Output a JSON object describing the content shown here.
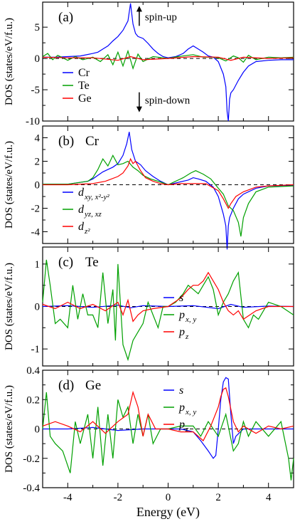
{
  "chart_data": [
    {
      "type": "line",
      "panel_label": "(a)",
      "ylim": [
        -10,
        9
      ],
      "yticks": [
        -10,
        -5,
        0,
        5
      ],
      "legend": [
        {
          "name": "Cr",
          "color": "#0000ff"
        },
        {
          "name": "Te",
          "color": "#00a000"
        },
        {
          "name": "Ge",
          "color": "#ff0000"
        }
      ],
      "annotations": [
        {
          "text": "spin-up",
          "arrow": "up",
          "x": -1.15,
          "y": 6.8
        },
        {
          "text": "spin-down",
          "arrow": "down",
          "x": -1.15,
          "y": -7.0
        }
      ],
      "series": [
        {
          "name": "Cr",
          "color": "#0000ff",
          "x": [
            -5,
            -4.5,
            -4,
            -3.5,
            -3,
            -2.8,
            -2.6,
            -2.4,
            -2.2,
            -2,
            -1.8,
            -1.6,
            -1.5,
            -1.4,
            -1.3,
            -1.2,
            -1,
            -0.8,
            -0.6,
            -0.4,
            -0.2,
            0,
            0.3,
            0.6,
            0.8,
            1,
            1.2,
            1.4,
            1.6,
            1.8,
            2,
            2.2,
            2.3,
            2.35,
            2.4,
            2.45,
            2.5,
            2.6,
            2.8,
            3,
            3.2,
            3.5,
            4,
            4.5,
            5
          ],
          "y": [
            0.2,
            0.2,
            0.3,
            0.4,
            0.8,
            1,
            1.5,
            2,
            2.8,
            3.5,
            4.5,
            6,
            8.8,
            5.5,
            4,
            3.5,
            3.2,
            2.4,
            1.5,
            0.8,
            0.3,
            0.1,
            0.3,
            0.8,
            1.5,
            2.0,
            1.5,
            1.0,
            0.4,
            0.2,
            -0.5,
            -2.5,
            -4.5,
            -8.5,
            -10,
            -6.5,
            -5.5,
            -5,
            -3.5,
            -2.2,
            -1.2,
            -0.5,
            -0.3,
            -0.2,
            -0.2
          ]
        },
        {
          "name": "Te",
          "color": "#00a000",
          "x": [
            -5,
            -4.8,
            -4.6,
            -4.4,
            -4.2,
            -4,
            -3.7,
            -3.4,
            -3,
            -2.7,
            -2.4,
            -2.2,
            -2,
            -1.8,
            -1.6,
            -1.4,
            -1.2,
            -1,
            -0.6,
            -0.2,
            0,
            0.4,
            0.8,
            1,
            1.4,
            1.8,
            2,
            2.3,
            2.6,
            2.8,
            3,
            3.2,
            3.5,
            4,
            4.5,
            5
          ],
          "y": [
            0.3,
            0.8,
            -0.2,
            0.5,
            0.1,
            -0.3,
            0.3,
            -0.2,
            0.2,
            -0.5,
            0.6,
            -1.0,
            1.0,
            -1.2,
            1.2,
            -1.6,
            0.7,
            -0.5,
            0.3,
            0.1,
            0,
            0.3,
            0.5,
            0.6,
            0.2,
            0.2,
            0.1,
            -0.4,
            0.4,
            0.1,
            -0.6,
            0.5,
            -0.2,
            0.2,
            0.1,
            0.2
          ]
        },
        {
          "name": "Ge",
          "color": "#ff0000",
          "x": [
            -5,
            -4,
            -3,
            -2,
            -1.5,
            -1,
            0,
            1,
            2,
            2.5,
            3,
            4,
            5
          ],
          "y": [
            0.2,
            0.1,
            0.1,
            -0.3,
            0.3,
            -0.2,
            0,
            0.3,
            0.2,
            -0.3,
            0.2,
            0,
            0.1
          ]
        }
      ]
    },
    {
      "type": "line",
      "panel_label": "(b)",
      "panel_title": "Cr",
      "ylim": [
        -5,
        5
      ],
      "yticks": [
        -4,
        -2,
        0,
        2,
        4
      ],
      "legend": [
        {
          "name": "d",
          "sub": "xy, x²-y²",
          "color": "#0000ff"
        },
        {
          "name": "d",
          "sub": "yz, xz",
          "color": "#00a000"
        },
        {
          "name": "d",
          "sub": "z²",
          "color": "#ff0000"
        }
      ],
      "series": [
        {
          "name": "d xy, x2-y2",
          "color": "#0000ff",
          "x": [
            -5,
            -4,
            -3.2,
            -3,
            -2.8,
            -2.6,
            -2.4,
            -2.2,
            -2,
            -1.8,
            -1.65,
            -1.55,
            -1.45,
            -1.3,
            -1.1,
            -0.9,
            -0.6,
            -0.3,
            0,
            0.4,
            0.8,
            1,
            1.2,
            1.5,
            1.8,
            2,
            2.2,
            2.3,
            2.35,
            2.4,
            2.45,
            2.6,
            2.8,
            3,
            3.5,
            4,
            5
          ],
          "y": [
            0.05,
            0.05,
            0.3,
            0.5,
            0.8,
            1.1,
            1.3,
            1.5,
            1.8,
            2.5,
            3.5,
            4.5,
            3.0,
            2.0,
            1.7,
            1.2,
            0.7,
            0.3,
            0,
            0.2,
            0.4,
            0.6,
            0.5,
            0.3,
            -0.2,
            -1.0,
            -2.5,
            -3.5,
            -5.5,
            -3.5,
            -2.8,
            -2.0,
            -1.2,
            -0.8,
            -0.3,
            -0.1,
            -0.05
          ]
        },
        {
          "name": "d yz, xz",
          "color": "#00a000",
          "x": [
            -5,
            -4,
            -3.2,
            -3,
            -2.8,
            -2.6,
            -2.4,
            -2.2,
            -2,
            -1.8,
            -1.6,
            -1.4,
            -1.2,
            -1,
            -0.7,
            -0.4,
            0,
            0.6,
            0.9,
            1.1,
            1.4,
            1.7,
            2,
            2.2,
            2.4,
            2.6,
            2.8,
            2.9,
            3,
            3.2,
            3.5,
            4,
            5
          ],
          "y": [
            0.05,
            0.05,
            0.3,
            0.6,
            1.3,
            2.2,
            1.6,
            2.5,
            1.7,
            1.8,
            2.0,
            1.5,
            1.2,
            0.8,
            0.5,
            0.3,
            0,
            0.6,
            1.0,
            1.2,
            0.9,
            0.5,
            -0.3,
            -0.8,
            -1.8,
            -2.2,
            -3.2,
            -4.4,
            -2.8,
            -1.6,
            -0.6,
            -0.2,
            -0.1
          ]
        },
        {
          "name": "d z2",
          "color": "#ff0000",
          "x": [
            -5,
            -4,
            -3,
            -2.5,
            -2,
            -1.8,
            -1.6,
            -1.5,
            -1.4,
            -1.3,
            -1.1,
            -0.9,
            -0.6,
            -0.3,
            0,
            0.5,
            1,
            1.5,
            2,
            2.2,
            2.4,
            2.5,
            2.7,
            3,
            3.5,
            4,
            5
          ],
          "y": [
            0,
            0,
            0.1,
            0.3,
            0.7,
            1.0,
            1.6,
            2.2,
            1.8,
            2.0,
            1.2,
            0.6,
            0.3,
            0.1,
            0,
            0.1,
            0.1,
            0.1,
            -0.5,
            -1.2,
            -2.0,
            -1.6,
            -1.0,
            -0.6,
            -0.2,
            -0.1,
            0
          ]
        }
      ]
    },
    {
      "type": "line",
      "panel_label": "(c)",
      "panel_title": "Te",
      "ylim": [
        -1.4,
        1.4
      ],
      "yticks": [
        -1,
        0,
        1
      ],
      "legend": [
        {
          "name": "s",
          "color": "#0000ff"
        },
        {
          "name": "p",
          "sub": "x, y",
          "color": "#00a000"
        },
        {
          "name": "p",
          "sub": "z",
          "color": "#ff0000"
        }
      ],
      "series": [
        {
          "name": "s",
          "color": "#0000ff",
          "x": [
            -5,
            -4,
            -3,
            -2,
            -1.5,
            -1,
            0,
            1,
            2,
            2.5,
            3,
            4,
            5
          ],
          "y": [
            0,
            0.02,
            -0.02,
            0.03,
            -0.03,
            0.02,
            0,
            0.02,
            -0.05,
            0.05,
            -0.02,
            0.01,
            0
          ]
        },
        {
          "name": "p x, y",
          "color": "#00a000",
          "x": [
            -5,
            -4.85,
            -4.7,
            -4.5,
            -4.3,
            -4,
            -3.8,
            -3.6,
            -3.4,
            -3.2,
            -3,
            -2.8,
            -2.6,
            -2.4,
            -2.2,
            -2.1,
            -2,
            -1.8,
            -1.6,
            -1.4,
            -1.2,
            -1,
            -0.8,
            -0.6,
            -0.4,
            -0.2,
            0,
            0.3,
            0.6,
            0.8,
            1,
            1.2,
            1.4,
            1.6,
            1.8,
            2,
            2.2,
            2.4,
            2.6,
            2.8,
            3,
            3.2,
            3.4,
            3.6,
            4,
            4.5,
            5
          ],
          "y": [
            0.1,
            1.1,
            0.5,
            -0.4,
            -0.3,
            -0.5,
            0.5,
            -0.3,
            0.3,
            -0.2,
            -0.2,
            -0.5,
            0.8,
            -0.4,
            0.4,
            -0.8,
            1.0,
            -0.9,
            -1.25,
            -0.8,
            -0.6,
            -0.4,
            0.1,
            -0.2,
            -0.5,
            0,
            0,
            0.1,
            0.3,
            0.5,
            0.4,
            0.3,
            0.5,
            0.7,
            0.4,
            -0.2,
            0.1,
            0.3,
            0.6,
            0.8,
            -0.3,
            -0.5,
            -0.2,
            -0.3,
            0.1,
            0,
            -0.2
          ]
        },
        {
          "name": "p z",
          "color": "#ff0000",
          "x": [
            -5,
            -4.5,
            -4,
            -3.5,
            -3,
            -2.5,
            -2,
            -1.8,
            -1.6,
            -1.4,
            -1.2,
            -1,
            -0.6,
            0,
            0.5,
            0.8,
            1,
            1.2,
            1.4,
            1.6,
            1.8,
            2,
            2.2,
            2.4,
            2.6,
            2.8,
            3,
            3.5,
            4,
            5
          ],
          "y": [
            0.05,
            -0.05,
            0.1,
            -0.05,
            0.05,
            -0.1,
            0.1,
            -0.2,
            0.15,
            -0.35,
            -0.2,
            -0.1,
            -0.05,
            0,
            0.2,
            0.4,
            0.5,
            0.5,
            0.6,
            0.8,
            0.6,
            0.4,
            0.1,
            -0.1,
            -0.2,
            -0.1,
            -0.3,
            -0.1,
            0,
            0
          ]
        }
      ]
    },
    {
      "type": "line",
      "panel_label": "(d)",
      "panel_title": "Ge",
      "ylim": [
        -0.4,
        0.4
      ],
      "yticks": [
        -0.4,
        -0.2,
        0,
        0.2,
        0.4
      ],
      "xlim": [
        -5,
        5
      ],
      "xticks": [
        -4,
        -2,
        0,
        2,
        4
      ],
      "xlabel": "Energy (eV)",
      "legend": [
        {
          "name": "s",
          "color": "#0000ff"
        },
        {
          "name": "p",
          "sub": "x, y",
          "color": "#00a000"
        },
        {
          "name": "p",
          "sub": "z",
          "color": "#ff0000"
        }
      ],
      "series": [
        {
          "name": "s",
          "color": "#0000ff",
          "x": [
            -5,
            -4,
            -3,
            -2,
            -1,
            0,
            0.5,
            1,
            1.3,
            1.6,
            1.8,
            1.9,
            2,
            2.1,
            2.2,
            2.3,
            2.4,
            2.5,
            2.6,
            2.7,
            3,
            3.5,
            4,
            5
          ],
          "y": [
            0,
            0,
            0.01,
            -0.01,
            0,
            0,
            0,
            -0.02,
            -0.08,
            -0.15,
            -0.2,
            -0.18,
            0,
            0.2,
            0.32,
            0.35,
            0.34,
            0.1,
            -0.1,
            -0.05,
            0,
            0,
            0,
            0
          ]
        },
        {
          "name": "p x, y",
          "color": "#00a000",
          "x": [
            -5,
            -4.85,
            -4.7,
            -4.5,
            -4.2,
            -3.9,
            -3.7,
            -3.5,
            -3.2,
            -3,
            -2.8,
            -2.6,
            -2.4,
            -2.2,
            -2,
            -1.8,
            -1.6,
            -1.4,
            -1.2,
            -1,
            -0.8,
            -0.6,
            -0.3,
            0,
            0.5,
            1,
            1.3,
            1.6,
            2,
            2.3,
            2.6,
            2.8,
            3,
            3.2,
            3.5,
            4,
            4.5,
            4.8,
            4.9,
            5
          ],
          "y": [
            0,
            0.25,
            -0.05,
            -0.1,
            -0.15,
            -0.3,
            0.05,
            -0.1,
            0.1,
            -0.2,
            0.15,
            -0.25,
            0.1,
            -0.2,
            0.2,
            0.08,
            0.15,
            -0.1,
            0.1,
            -0.05,
            0.1,
            -0.1,
            0,
            0,
            0.02,
            0.02,
            -0.05,
            0.05,
            -0.05,
            0.1,
            -0.15,
            -0.1,
            0.05,
            -0.05,
            0.05,
            -0.05,
            0.05,
            -0.2,
            -0.35,
            -0.2
          ]
        },
        {
          "name": "p z",
          "color": "#ff0000",
          "x": [
            -5,
            -4.5,
            -4,
            -3.5,
            -3,
            -2.5,
            -2,
            -1.6,
            -1.4,
            -1.2,
            -1.1,
            -1,
            -0.8,
            -0.5,
            0,
            0.5,
            1,
            1.4,
            1.7,
            2,
            2.1,
            2.2,
            2.3,
            2.4,
            2.6,
            2.8,
            3,
            3.5,
            4,
            4.5,
            5
          ],
          "y": [
            0.02,
            0.05,
            0.02,
            -0.02,
            0.05,
            -0.03,
            0.05,
            0.1,
            0.25,
            0.15,
            0.05,
            -0.05,
            0.1,
            0,
            0,
            -0.02,
            -0.02,
            -0.08,
            0.02,
            0.15,
            0.22,
            0.27,
            0.28,
            0.22,
            0.05,
            -0.02,
            0.02,
            -0.03,
            0.02,
            0,
            0.02
          ]
        }
      ]
    }
  ],
  "ylabel": "DOS (states/eV/f.u.)",
  "xlabel": "Energy (eV)"
}
